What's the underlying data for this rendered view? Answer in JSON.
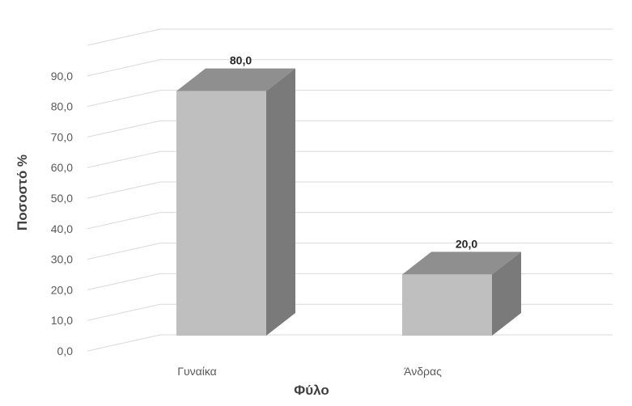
{
  "chart_data": {
    "type": "bar",
    "style": "3d-column",
    "categories": [
      "Γυναίκα",
      "Άνδρας"
    ],
    "values": [
      80.0,
      20.0
    ],
    "value_labels": [
      "80,0",
      "20,0"
    ],
    "yticks": [
      "0,0",
      "10,0",
      "20,0",
      "30,0",
      "40,0",
      "50,0",
      "60,0",
      "70,0",
      "80,0",
      "90,0"
    ],
    "ylim": [
      0,
      100
    ],
    "xlabel": "Φύλο",
    "ylabel": "Ποσοστό %",
    "grid": true,
    "legend": "none",
    "colors": {
      "front": "#bfbfbf",
      "side": "#7a7a7a",
      "top": "#8f8f8f",
      "grid": "#d9d9d9"
    }
  }
}
